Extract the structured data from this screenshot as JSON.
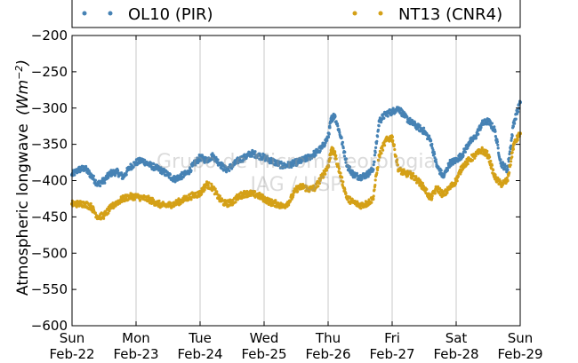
{
  "chart_data": {
    "type": "scatter",
    "ylabel": "Atmospheric longwave",
    "ylabel_unit": "(Wm^-2)",
    "ylim": [
      -600,
      -200
    ],
    "yticks": [
      -600,
      -550,
      -500,
      -450,
      -400,
      -350,
      -300,
      -250,
      -200
    ],
    "ytick_labels": [
      "−600",
      "−550",
      "−500",
      "−450",
      "−400",
      "−350",
      "−300",
      "−250",
      "−200"
    ],
    "xlim": [
      0,
      7
    ],
    "xticks": [
      0,
      1,
      2,
      3,
      4,
      5,
      6,
      7
    ],
    "xtick_day": [
      "Sun",
      "Mon",
      "Tue",
      "Wed",
      "Thu",
      "Fri",
      "Sat",
      "Sun"
    ],
    "xtick_date": [
      "Feb-22",
      "Feb-23",
      "Feb-24",
      "Feb-25",
      "Feb-26",
      "Feb-27",
      "Feb-28",
      "Feb-29"
    ],
    "grid": "vertical",
    "legend_position": "top",
    "watermark": [
      "Grupo de Micrometeorologia",
      "IAG / USP"
    ],
    "series": [
      {
        "name": "OL10 (PIR)",
        "color": "#4682b4",
        "x": [
          0.0,
          0.1,
          0.2,
          0.3,
          0.4,
          0.5,
          0.6,
          0.7,
          0.8,
          0.9,
          1.0,
          1.1,
          1.2,
          1.3,
          1.4,
          1.5,
          1.6,
          1.7,
          1.8,
          1.9,
          2.0,
          2.1,
          2.2,
          2.3,
          2.4,
          2.5,
          2.6,
          2.7,
          2.8,
          2.9,
          3.0,
          3.1,
          3.2,
          3.3,
          3.4,
          3.5,
          3.6,
          3.7,
          3.8,
          3.9,
          4.0,
          4.05,
          4.1,
          4.2,
          4.3,
          4.4,
          4.5,
          4.6,
          4.7,
          4.8,
          4.9,
          5.0,
          5.1,
          5.2,
          5.3,
          5.4,
          5.5,
          5.6,
          5.7,
          5.8,
          5.9,
          6.0,
          6.1,
          6.2,
          6.3,
          6.4,
          6.5,
          6.6,
          6.7,
          6.8,
          6.9,
          7.0
        ],
        "y": [
          -392,
          -385,
          -383,
          -393,
          -405,
          -400,
          -390,
          -388,
          -395,
          -382,
          -375,
          -372,
          -378,
          -382,
          -386,
          -392,
          -398,
          -394,
          -390,
          -378,
          -368,
          -372,
          -366,
          -376,
          -385,
          -380,
          -372,
          -368,
          -362,
          -365,
          -368,
          -372,
          -376,
          -380,
          -378,
          -375,
          -372,
          -368,
          -362,
          -355,
          -340,
          -315,
          -310,
          -340,
          -380,
          -392,
          -395,
          -392,
          -385,
          -318,
          -308,
          -305,
          -300,
          -312,
          -320,
          -326,
          -332,
          -345,
          -380,
          -395,
          -376,
          -372,
          -364,
          -348,
          -340,
          -322,
          -318,
          -330,
          -376,
          -385,
          -320,
          -292
        ]
      },
      {
        "name": "NT13 (CNR4)",
        "color": "#d4a017",
        "x": [
          0.0,
          0.1,
          0.2,
          0.3,
          0.4,
          0.5,
          0.6,
          0.7,
          0.8,
          0.9,
          1.0,
          1.1,
          1.2,
          1.3,
          1.4,
          1.5,
          1.6,
          1.7,
          1.8,
          1.9,
          2.0,
          2.1,
          2.2,
          2.3,
          2.4,
          2.5,
          2.6,
          2.7,
          2.8,
          2.9,
          3.0,
          3.1,
          3.2,
          3.3,
          3.4,
          3.5,
          3.6,
          3.7,
          3.8,
          3.9,
          4.0,
          4.05,
          4.1,
          4.2,
          4.3,
          4.4,
          4.5,
          4.6,
          4.7,
          4.8,
          4.9,
          5.0,
          5.1,
          5.2,
          5.3,
          5.4,
          5.5,
          5.6,
          5.7,
          5.8,
          5.9,
          6.0,
          6.1,
          6.2,
          6.3,
          6.4,
          6.5,
          6.6,
          6.7,
          6.8,
          6.9,
          7.0
        ],
        "y": [
          -432,
          -432,
          -432,
          -436,
          -450,
          -448,
          -438,
          -430,
          -425,
          -422,
          -422,
          -424,
          -426,
          -430,
          -434,
          -434,
          -432,
          -428,
          -424,
          -420,
          -418,
          -405,
          -410,
          -425,
          -432,
          -430,
          -422,
          -418,
          -418,
          -420,
          -425,
          -430,
          -432,
          -436,
          -428,
          -412,
          -408,
          -412,
          -410,
          -395,
          -380,
          -358,
          -362,
          -395,
          -425,
          -430,
          -434,
          -432,
          -425,
          -365,
          -345,
          -340,
          -385,
          -390,
          -392,
          -400,
          -410,
          -425,
          -410,
          -420,
          -410,
          -400,
          -380,
          -372,
          -365,
          -358,
          -365,
          -395,
          -405,
          -400,
          -350,
          -335
        ]
      }
    ]
  }
}
